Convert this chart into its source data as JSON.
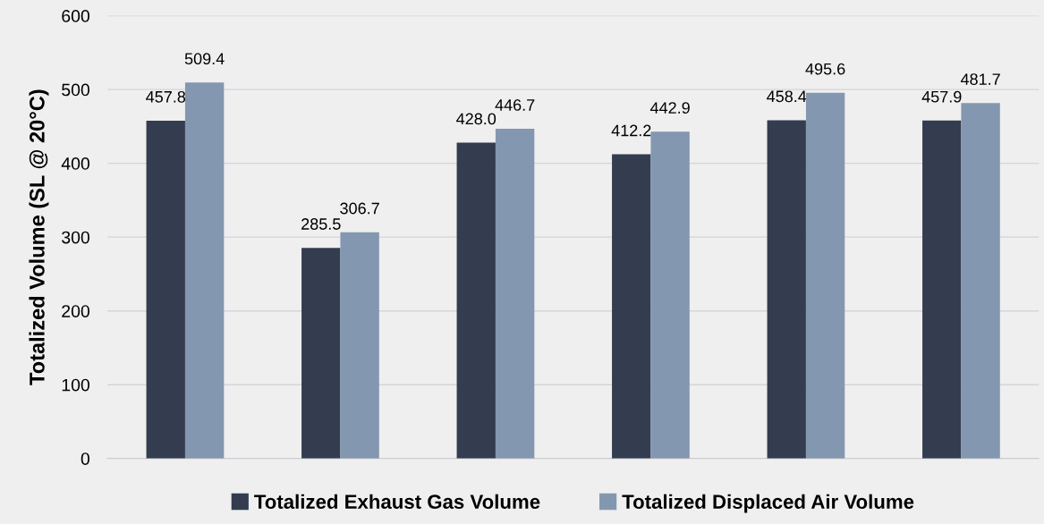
{
  "chart_data": {
    "type": "bar",
    "ylabel": "Totalized Volume (SL @ 20°C)",
    "categories": [
      null,
      null,
      null,
      null,
      null,
      null
    ],
    "series": [
      {
        "name": "Totalized Exhaust Gas Volume",
        "color": "#333d4f",
        "values": [
          457.8,
          285.5,
          428.0,
          412.2,
          458.4,
          457.9
        ],
        "value_labels": [
          "457.8",
          "285.5",
          "428.0",
          "412.2",
          "458.4",
          "457.9"
        ]
      },
      {
        "name": "Totalized Displaced Air Volume",
        "color": "#8497b0",
        "values": [
          509.4,
          306.7,
          446.7,
          442.9,
          495.6,
          481.7
        ],
        "value_labels": [
          "509.4",
          "306.7",
          "446.7",
          "442.9",
          "495.6",
          "481.7"
        ]
      }
    ],
    "ylim": [
      0,
      600
    ],
    "yticks": [
      0,
      100,
      200,
      300,
      400,
      500,
      600
    ],
    "grid": "y",
    "legend": "bottom",
    "tick_labels": "y"
  }
}
